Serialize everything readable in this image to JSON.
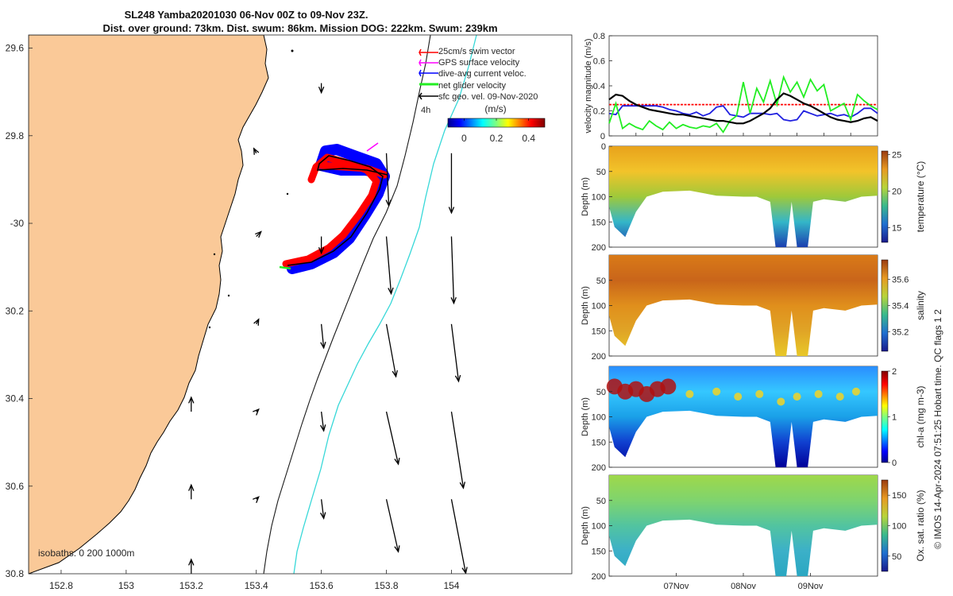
{
  "figure": {
    "title_line1": "SL248 Yamba20201030 06-Nov 00Z to 09-Nov 23Z.",
    "title_line2": "Dist. over ground: 73km. Dist. swum: 86km. Mission DOG: 222km. Swum: 239km",
    "side_note": "© IMOS 14-Apr-2024 07:51:25 Hobart time. QC flags 1  2"
  },
  "colors": {
    "land": "#fac998",
    "coast": "#000000",
    "isobath": "#2a2a2a",
    "track_red": "#ff0000",
    "track_blue": "#0000ff",
    "cyan_line": "#37d8d8",
    "glider_green": "#22ee22"
  },
  "chart_data": [
    {
      "type": "map",
      "title": "SL248 Yamba20201030 06-Nov 00Z to 09-Nov 23Z.",
      "xlim": [
        152.7,
        154.37
      ],
      "ylim": [
        -30.8,
        -29.57
      ],
      "x_ticks": [
        152.8,
        153,
        153.2,
        153.4,
        153.6,
        153.8,
        154
      ],
      "y_ticks": [
        -29.6,
        -29.8,
        -30,
        -30.2,
        -30.4,
        -30.6,
        -30.8
      ],
      "x_tick_labels": [
        "152.8",
        "153",
        "153.2",
        "153.4",
        "153.6",
        "153.8",
        "154"
      ],
      "y_tick_labels": [
        "29.6",
        "29.8",
        "-30",
        "30.2",
        "30.4",
        "30.6",
        "30.8"
      ],
      "legend": [
        "25cm/s swim vector",
        "GPS surface velocity",
        "dive-avg current veloc.",
        "net glider velocity",
        "sfc geo. vel. 09-Nov-2020"
      ],
      "legend_time": "4h",
      "colorbar": {
        "label": "(m/s)",
        "ticks": [
          "0",
          "0.2",
          "0.4"
        ],
        "range": [
          -0.1,
          0.5
        ]
      },
      "isobaths_label": "isobaths: 0   200  1000m",
      "geo_vectors": [
        {
          "lon": 153.6,
          "lat": -29.68,
          "u": 0.0,
          "v": -0.04
        },
        {
          "lon": 153.8,
          "lat": -29.84,
          "u": 0.01,
          "v": -0.22
        },
        {
          "lon": 153.8,
          "lat": -30.03,
          "u": 0.02,
          "v": -0.24
        },
        {
          "lon": 153.8,
          "lat": -30.23,
          "u": 0.04,
          "v": -0.22
        },
        {
          "lon": 153.8,
          "lat": -30.43,
          "u": 0.05,
          "v": -0.22
        },
        {
          "lon": 153.8,
          "lat": -30.63,
          "u": 0.05,
          "v": -0.22
        },
        {
          "lon": 154.0,
          "lat": -29.84,
          "u": 0.0,
          "v": -0.25
        },
        {
          "lon": 154.0,
          "lat": -30.03,
          "u": 0.01,
          "v": -0.28
        },
        {
          "lon": 154.0,
          "lat": -30.23,
          "u": 0.03,
          "v": -0.24
        },
        {
          "lon": 154.0,
          "lat": -30.43,
          "u": 0.05,
          "v": -0.32
        },
        {
          "lon": 154.0,
          "lat": -30.63,
          "u": 0.06,
          "v": -0.31
        },
        {
          "lon": 153.6,
          "lat": -30.03,
          "u": 0.0,
          "v": -0.07
        },
        {
          "lon": 153.6,
          "lat": -30.23,
          "u": 0.01,
          "v": -0.1
        },
        {
          "lon": 153.6,
          "lat": -30.43,
          "u": 0.01,
          "v": -0.08
        },
        {
          "lon": 153.6,
          "lat": -30.63,
          "u": 0.01,
          "v": -0.08
        },
        {
          "lon": 153.4,
          "lat": -29.84,
          "u": -0.01,
          "v": 0.02
        },
        {
          "lon": 153.4,
          "lat": -30.03,
          "u": 0.02,
          "v": 0.02
        },
        {
          "lon": 153.4,
          "lat": -30.23,
          "u": 0.01,
          "v": 0.02
        },
        {
          "lon": 153.4,
          "lat": -30.43,
          "u": 0.01,
          "v": 0.01
        },
        {
          "lon": 153.4,
          "lat": -30.63,
          "u": 0.01,
          "v": 0.01
        },
        {
          "lon": 153.2,
          "lat": -30.43,
          "u": 0.0,
          "v": 0.06
        },
        {
          "lon": 153.2,
          "lat": -30.63,
          "u": 0.0,
          "v": 0.06
        },
        {
          "lon": 153.2,
          "lat": -30.8,
          "u": 0.0,
          "v": 0.06
        }
      ]
    },
    {
      "type": "line",
      "ylabel": "velocity magnitude (m/s)",
      "ylim": [
        0,
        0.8
      ],
      "y_ticks": [
        "0",
        "0.2",
        "0.4",
        "0.6",
        "0.8"
      ],
      "x": [
        0,
        0.1,
        0.2,
        0.3,
        0.4,
        0.5,
        0.6,
        0.7,
        0.8,
        0.9,
        1.0,
        1.1,
        1.2,
        1.3,
        1.4,
        1.5,
        1.6,
        1.7,
        1.8,
        1.9,
        2.0,
        2.1,
        2.2,
        2.3,
        2.4,
        2.5,
        2.6,
        2.7,
        2.8,
        2.9,
        3.0,
        3.1,
        3.2,
        3.3,
        3.4,
        3.5,
        3.6,
        3.7,
        3.8,
        3.9,
        4.0
      ],
      "series": [
        {
          "color": "#ff0000",
          "values": [
            0.25,
            0.25,
            0.25,
            0.25,
            0.25,
            0.25,
            0.25,
            0.25,
            0.25,
            0.25,
            0.25,
            0.25,
            0.25,
            0.25,
            0.25,
            0.25,
            0.25,
            0.25,
            0.25,
            0.25,
            0.25,
            0.25,
            0.25,
            0.25,
            0.25,
            0.25,
            0.25,
            0.25,
            0.25,
            0.25,
            0.25,
            0.25,
            0.25,
            0.25,
            0.25,
            0.25,
            0.25,
            0.25,
            0.25,
            0.25,
            0.25
          ]
        },
        {
          "color": "#2020e0",
          "values": [
            0.18,
            0.17,
            0.24,
            0.24,
            0.24,
            0.24,
            0.24,
            0.24,
            0.23,
            0.21,
            0.2,
            0.18,
            0.17,
            0.19,
            0.16,
            0.18,
            0.23,
            0.24,
            0.17,
            0.16,
            0.15,
            0.18,
            0.18,
            0.18,
            0.17,
            0.18,
            0.13,
            0.12,
            0.13,
            0.2,
            0.18,
            0.16,
            0.17,
            0.18,
            0.16,
            0.17,
            0.15,
            0.18,
            0.22,
            0.22,
            0.18
          ]
        },
        {
          "color": "#22ee22",
          "values": [
            0.1,
            0.26,
            0.06,
            0.1,
            0.07,
            0.05,
            0.12,
            0.08,
            0.05,
            0.11,
            0.06,
            0.09,
            0.07,
            0.06,
            0.08,
            0.07,
            0.1,
            0.03,
            0.12,
            0.16,
            0.43,
            0.18,
            0.38,
            0.27,
            0.44,
            0.25,
            0.47,
            0.35,
            0.43,
            0.31,
            0.45,
            0.36,
            0.41,
            0.2,
            0.23,
            0.26,
            0.13,
            0.33,
            0.28,
            0.24,
            0.21
          ]
        },
        {
          "color": "#000000",
          "values": [
            0.29,
            0.33,
            0.32,
            0.28,
            0.25,
            0.23,
            0.21,
            0.2,
            0.19,
            0.18,
            0.17,
            0.17,
            0.16,
            0.15,
            0.14,
            0.13,
            0.12,
            0.12,
            0.11,
            0.1,
            0.1,
            0.12,
            0.15,
            0.18,
            0.22,
            0.29,
            0.34,
            0.32,
            0.29,
            0.26,
            0.24,
            0.21,
            0.18,
            0.15,
            0.13,
            0.12,
            0.11,
            0.12,
            0.14,
            0.15,
            0.12
          ]
        }
      ]
    },
    {
      "type": "heatmap",
      "ylabel": "Depth (m)",
      "colorbar_label": "temperature (°C)",
      "colorbar_ticks": [
        "15",
        "20",
        "25"
      ],
      "colorbar_range": [
        13,
        25.5
      ],
      "y_ticks": [
        "0",
        "50",
        "100",
        "150",
        "200"
      ],
      "ylim": [
        0,
        200
      ]
    },
    {
      "type": "heatmap",
      "ylabel": "Depth (m)",
      "colorbar_label": "salinity",
      "colorbar_ticks": [
        "35.2",
        "35.4",
        "35.6"
      ],
      "colorbar_range": [
        35.05,
        35.75
      ],
      "y_ticks": [
        "50",
        "100",
        "150",
        "200"
      ],
      "ylim": [
        0,
        200
      ]
    },
    {
      "type": "heatmap",
      "ylabel": "Depth (m)",
      "colorbar_label": "chl-a (mg m-3)",
      "colorbar_ticks": [
        "0",
        "1",
        "2"
      ],
      "colorbar_range": [
        0,
        2
      ],
      "y_ticks": [
        "50",
        "100",
        "150",
        "200"
      ],
      "ylim": [
        0,
        200
      ]
    },
    {
      "type": "heatmap",
      "ylabel": "Depth (m)",
      "colorbar_label": "Ox. sat. ratio (%)",
      "colorbar_ticks": [
        "50",
        "100",
        "150"
      ],
      "colorbar_range": [
        25,
        175
      ],
      "y_ticks": [
        "50",
        "100",
        "150",
        "200"
      ],
      "ylim": [
        0,
        200
      ],
      "x_tick_labels": [
        "07Nov",
        "08Nov",
        "09Nov"
      ]
    }
  ]
}
